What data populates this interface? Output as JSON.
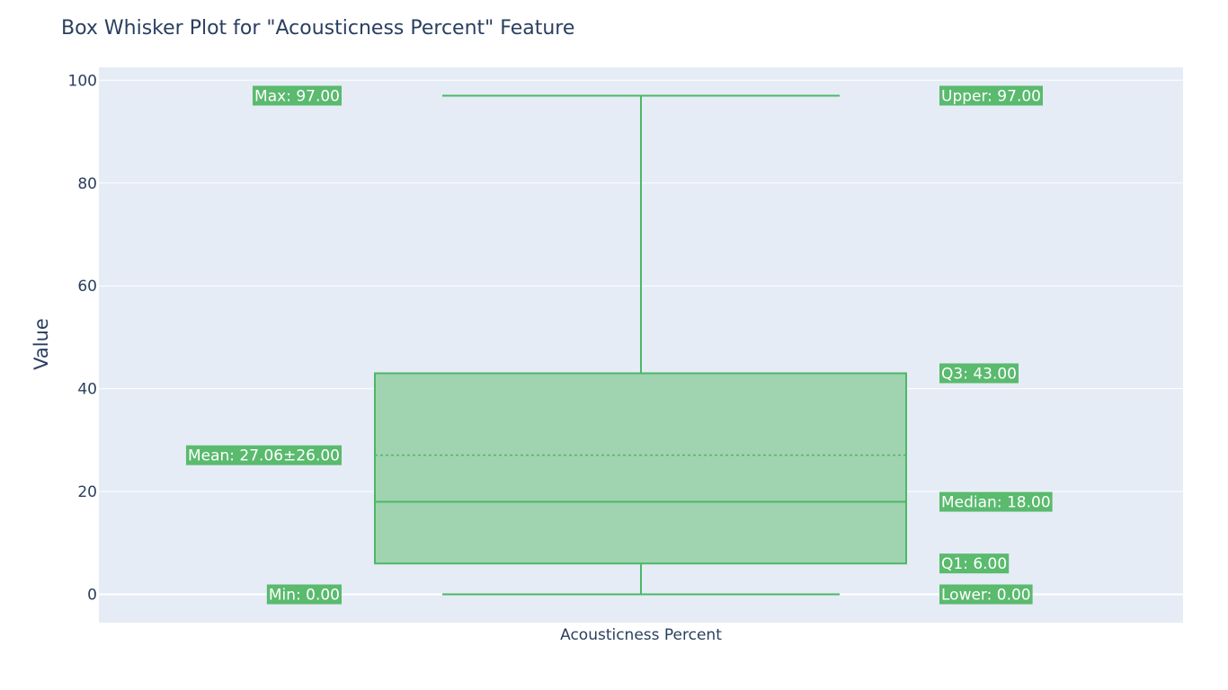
{
  "chart_data": {
    "type": "box",
    "title": "Box Whisker Plot for \"Acousticness Percent\" Feature",
    "xlabel": "",
    "ylabel": "Value",
    "categories": [
      "Acousticness Percent"
    ],
    "ylim": [
      -5.5,
      102.5
    ],
    "yticks": [
      0,
      20,
      40,
      60,
      80,
      100
    ],
    "grid": true,
    "stats": {
      "min": 0,
      "lower": 0,
      "q1": 6,
      "median": 18,
      "mean": 27.06,
      "sd": 26,
      "q3": 43,
      "upper": 97,
      "max": 97
    },
    "annotations": {
      "left": [
        {
          "text": "Max: 97.00",
          "y": 97
        },
        {
          "text": "Mean: 27.06±26.00",
          "y": 27.06
        },
        {
          "text": "Min: 0.00",
          "y": 0
        }
      ],
      "right": [
        {
          "text": "Upper: 97.00",
          "y": 97
        },
        {
          "text": "Q3: 43.00",
          "y": 43
        },
        {
          "text": "Median: 18.00",
          "y": 18
        },
        {
          "text": "Q1: 6.00",
          "y": 6
        },
        {
          "text": "Lower: 0.00",
          "y": 0
        }
      ]
    },
    "colors": {
      "box_fill": "#a0d3b0",
      "line": "#4cb766",
      "label_bg": "#5aba6e",
      "plot_bg": "#e5ecf6",
      "text": "#2a3f5f"
    }
  }
}
